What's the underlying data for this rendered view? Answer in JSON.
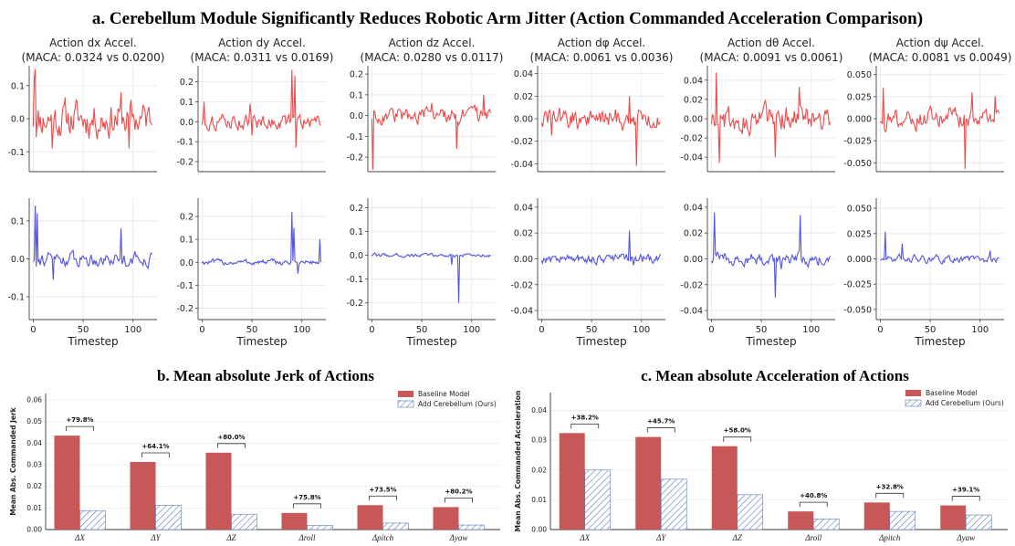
{
  "main_title": "a. Cerebellum Module Significantly Reduces Robotic Arm Jitter (Action Commanded Acceleration Comparison)",
  "colors": {
    "baseline": "#ef4a4a",
    "ours": "#5454e0",
    "bar_baseline": "#c85858",
    "bar_ours_hatch": "#5b7bb8"
  },
  "top_xlabel": "Timestep",
  "chart_data": [
    {
      "type": "line",
      "name": "dx",
      "title_line1": "Action dx Accel.",
      "title_line2": "(MACA: 0.0324 vs 0.0200)",
      "ylim_top": [
        -0.16,
        0.16
      ],
      "yticks_top": [
        0.1,
        0.0,
        -0.1
      ],
      "ylim_bot": [
        -0.16,
        0.16
      ],
      "yticks_bot": [
        0.1,
        0.0,
        -0.1
      ],
      "xticks": [
        0,
        50,
        100
      ],
      "amp_red": 0.045,
      "amp_blue": 0.015,
      "spikes_red": [
        [
          2,
          0.15
        ],
        [
          1,
          0.12
        ],
        [
          88,
          0.08
        ],
        [
          96,
          -0.09
        ],
        [
          19,
          -0.09
        ]
      ],
      "spikes_blue": [
        [
          2,
          0.14
        ],
        [
          4,
          0.12
        ],
        [
          88,
          0.08
        ],
        [
          20,
          -0.055
        ]
      ]
    },
    {
      "type": "line",
      "name": "dy",
      "title_line1": "Action dy Accel.",
      "title_line2": "(MACA: 0.0311 vs 0.0169)",
      "ylim_top": [
        -0.25,
        0.28
      ],
      "yticks_top": [
        0.2,
        0.1,
        0.0,
        -0.1,
        -0.2
      ],
      "ylim_bot": [
        -0.25,
        0.28
      ],
      "yticks_bot": [
        0.2,
        0.1,
        0.0,
        -0.1,
        -0.2
      ],
      "xticks": [
        0,
        50,
        100
      ],
      "amp_red": 0.03,
      "amp_blue": 0.01,
      "spikes_red": [
        [
          90,
          0.26
        ],
        [
          93,
          0.23
        ],
        [
          94,
          -0.13
        ],
        [
          2,
          0.1
        ],
        [
          48,
          0.09
        ],
        [
          50,
          -0.07
        ]
      ],
      "spikes_blue": [
        [
          90,
          0.22
        ],
        [
          92,
          0.15
        ],
        [
          96,
          -0.05
        ],
        [
          118,
          0.1
        ]
      ]
    },
    {
      "type": "line",
      "name": "dz",
      "title_line1": "Action dz Accel.",
      "title_line2": "(MACA: 0.0280 vs 0.0117)",
      "ylim_top": [
        -0.27,
        0.24
      ],
      "yticks_top": [
        0.2,
        0.1,
        0.0,
        -0.1,
        -0.2
      ],
      "ylim_bot": [
        -0.27,
        0.24
      ],
      "yticks_bot": [
        0.2,
        0.1,
        0.0,
        -0.1,
        -0.2
      ],
      "xticks": [
        0,
        50,
        100
      ],
      "amp_red": 0.03,
      "amp_blue": 0.006,
      "spikes_red": [
        [
          1,
          -0.26
        ],
        [
          112,
          0.1
        ],
        [
          85,
          -0.16
        ],
        [
          60,
          0.06
        ]
      ],
      "spikes_blue": [
        [
          87,
          -0.2
        ],
        [
          80,
          -0.04
        ]
      ]
    },
    {
      "type": "line",
      "name": "dphi",
      "title_line1": "Action dφ Accel.",
      "title_line2": "(MACA: 0.0061 vs 0.0036)",
      "ylim_top": [
        -0.047,
        0.047
      ],
      "yticks_top": [
        0.04,
        0.02,
        0.0,
        -0.02,
        -0.04
      ],
      "ylim_bot": [
        -0.047,
        0.047
      ],
      "yticks_bot": [
        0.04,
        0.02,
        0.0,
        -0.02,
        -0.04
      ],
      "xticks": [
        0,
        50,
        100
      ],
      "amp_red": 0.008,
      "amp_blue": 0.003,
      "spikes_red": [
        [
          95,
          -0.042
        ],
        [
          88,
          0.02
        ],
        [
          10,
          -0.015
        ]
      ],
      "spikes_blue": [
        [
          88,
          0.022
        ],
        [
          92,
          -0.005
        ]
      ]
    },
    {
      "type": "line",
      "name": "dtheta",
      "title_line1": "Action dθ Accel.",
      "title_line2": "(MACA: 0.0091 vs 0.0061)",
      "ylim_top": [
        -0.055,
        0.055
      ],
      "yticks_top": [
        0.04,
        0.02,
        0.0,
        -0.02,
        -0.04
      ],
      "ylim_bot": [
        -0.047,
        0.047
      ],
      "yticks_bot": [
        0.04,
        0.02,
        0.0,
        -0.02,
        -0.04
      ],
      "xticks": [
        0,
        50,
        100
      ],
      "amp_red": 0.011,
      "amp_blue": 0.004,
      "spikes_red": [
        [
          5,
          0.048
        ],
        [
          8,
          -0.046
        ],
        [
          88,
          0.033
        ],
        [
          64,
          -0.04
        ]
      ],
      "spikes_blue": [
        [
          3,
          0.036
        ],
        [
          89,
          0.034
        ],
        [
          64,
          -0.03
        ],
        [
          70,
          -0.008
        ]
      ]
    },
    {
      "type": "line",
      "name": "dpsi",
      "title_line1": "Action dψ Accel.",
      "title_line2": "(MACA: 0.0081 vs 0.0049)",
      "ylim_top": [
        -0.06,
        0.06
      ],
      "yticks_top": [
        0.05,
        0.025,
        0.0,
        -0.025,
        -0.05
      ],
      "ylim_bot": [
        -0.06,
        0.06
      ],
      "yticks_bot": [
        0.05,
        0.025,
        0.0,
        -0.025,
        -0.05
      ],
      "xticks": [
        0,
        50,
        100
      ],
      "amp_red": 0.009,
      "amp_blue": 0.003,
      "spikes_red": [
        [
          3,
          0.035
        ],
        [
          85,
          -0.057
        ],
        [
          92,
          0.03
        ],
        [
          115,
          0.025
        ]
      ],
      "spikes_blue": [
        [
          5,
          0.027
        ],
        [
          22,
          0.015
        ],
        [
          110,
          0.008
        ]
      ]
    },
    {
      "type": "bar",
      "name": "jerk",
      "title": "b. Mean absolute Jerk of Actions",
      "ylabel": "Mean Abs. Commanded Jerk",
      "categories": [
        "ΔX",
        "ΔY",
        "ΔZ",
        "Δroll",
        "Δpitch",
        "Δyaw"
      ],
      "series": [
        {
          "name": "Baseline Model",
          "values": [
            0.0435,
            0.0313,
            0.0356,
            0.0077,
            0.0113,
            0.0104
          ]
        },
        {
          "name": "Add Cerebellum (Ours)",
          "values": [
            0.0088,
            0.0113,
            0.0071,
            0.0019,
            0.003,
            0.0021
          ]
        }
      ],
      "annotations": [
        "+79.8%",
        "+64.1%",
        "+80.0%",
        "+75.8%",
        "+73.5%",
        "+80.2%"
      ],
      "ylim": [
        0,
        0.063
      ],
      "yticks": [
        "0.00",
        "0.01",
        "0.02",
        "0.03",
        "0.04",
        "0.05",
        "0.06"
      ]
    },
    {
      "type": "bar",
      "name": "accel",
      "title": "c. Mean absolute Acceleration of Actions",
      "ylabel": "Mean Abs. Commanded Acceleration",
      "categories": [
        "ΔX",
        "ΔY",
        "ΔZ",
        "Δroll",
        "Δpitch",
        "Δyaw"
      ],
      "series": [
        {
          "name": "Baseline Model",
          "values": [
            0.0324,
            0.0311,
            0.028,
            0.0061,
            0.0091,
            0.0081
          ]
        },
        {
          "name": "Add Cerebellum (Ours)",
          "values": [
            0.02,
            0.0169,
            0.0117,
            0.0036,
            0.0061,
            0.0049
          ]
        }
      ],
      "annotations": [
        "+38.2%",
        "+45.7%",
        "+58.0%",
        "+40.8%",
        "+32.8%",
        "+39.1%"
      ],
      "ylim": [
        0,
        0.046
      ],
      "yticks": [
        "0.00",
        "0.01",
        "0.02",
        "0.03",
        "0.04"
      ]
    }
  ]
}
